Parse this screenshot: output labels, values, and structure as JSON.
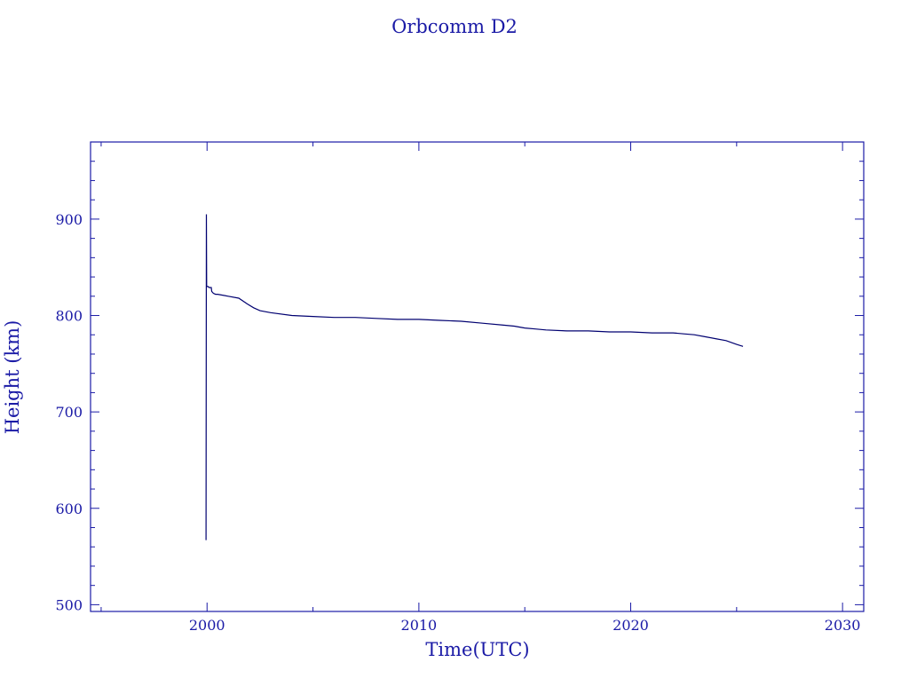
{
  "chart_data": {
    "type": "line",
    "title": "Orbcomm D2",
    "xlabel": "Time(UTC)",
    "ylabel": "Height (km)",
    "xlim": [
      1994.5,
      2031.0
    ],
    "ylim": [
      493,
      980
    ],
    "x_ticks": [
      2000,
      2010,
      2020,
      2030
    ],
    "x_tick_labels": [
      "2000",
      "2010",
      "2020",
      "2030"
    ],
    "y_ticks": [
      500,
      600,
      700,
      800,
      900
    ],
    "y_tick_labels": [
      "500",
      "600",
      "700",
      "800",
      "900"
    ],
    "grid": false,
    "series": [
      {
        "color": "#000070",
        "x": [
          1999.95,
          1999.97,
          1999.98,
          2000.05,
          2000.1,
          2000.2,
          2000.22,
          2000.3,
          2000.4,
          2000.5,
          2001.0,
          2001.5,
          2001.9,
          2002.2,
          2002.5,
          2003.0,
          2004.0,
          2005.0,
          2006.0,
          2007.0,
          2008.0,
          2009.0,
          2010.0,
          2011.0,
          2012.0,
          2013.0,
          2014.0,
          2014.5,
          2015.0,
          2015.5,
          2016.0,
          2017.0,
          2018.0,
          2019.0,
          2020.0,
          2021.0,
          2022.0,
          2022.5,
          2023.0,
          2023.5,
          2024.0,
          2024.5,
          2025.0,
          2025.3
        ],
        "y": [
          567,
          905,
          830,
          830,
          829,
          829,
          825,
          823,
          822,
          822,
          820,
          818,
          812,
          808,
          805,
          803,
          800,
          799,
          798,
          798,
          797,
          796,
          796,
          795,
          794,
          792,
          790,
          789,
          787,
          786,
          785,
          784,
          784,
          783,
          783,
          782,
          782,
          781,
          780,
          778,
          776,
          774,
          770,
          768
        ]
      }
    ]
  }
}
